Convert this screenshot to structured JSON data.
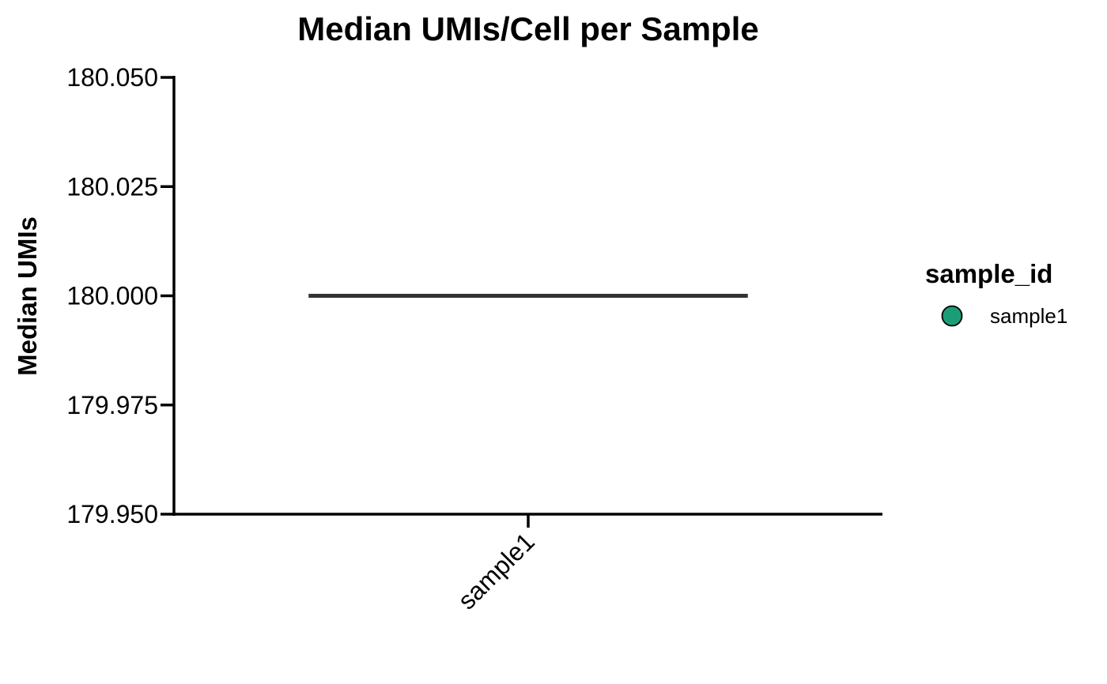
{
  "chart_data": {
    "type": "box",
    "title": "Median UMIs/Cell per Sample",
    "xlabel": "",
    "ylabel": "Median UMIs",
    "categories": [
      "sample1"
    ],
    "series": [
      {
        "name": "sample1",
        "values": [
          180.0
        ],
        "color": "#1b9e77"
      }
    ],
    "ylim": [
      179.95,
      180.05
    ],
    "yticks": [
      179.95,
      179.975,
      180.0,
      180.025,
      180.05
    ],
    "ytick_labels": [
      "179.950",
      "179.975",
      "180.000",
      "180.025",
      "180.050"
    ],
    "xtick_labels": [
      "sample1"
    ],
    "xtick_rotation": -45,
    "grid": false,
    "legend": {
      "title": "sample_id",
      "position": "right",
      "items": [
        {
          "label": "sample1",
          "color": "#1b9e77"
        }
      ]
    }
  }
}
